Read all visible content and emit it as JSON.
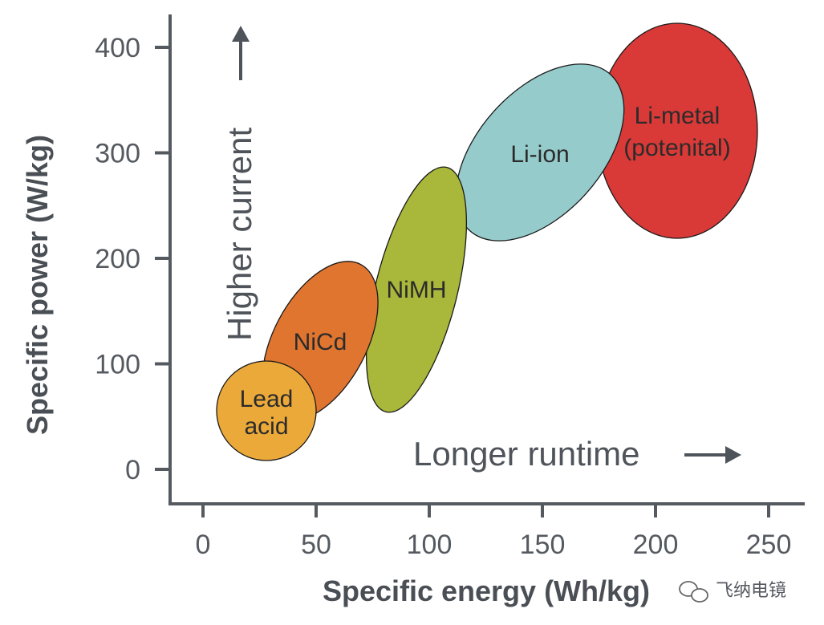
{
  "chart_data": {
    "type": "scatter",
    "title": "",
    "xlabel": "Specific energy (Wh/kg)",
    "ylabel": "Specific power (W/kg)",
    "xlim": [
      -15,
      265
    ],
    "ylim": [
      -32,
      432
    ],
    "x_ticks": [
      "0",
      "50",
      "100",
      "150",
      "200",
      "250"
    ],
    "y_ticks": [
      "0",
      "100",
      "200",
      "300",
      "400"
    ],
    "grid": false,
    "series": [
      {
        "name": "Lead acid",
        "label_lines": [
          "Lead",
          "acid"
        ],
        "color": "#EBA93A",
        "x_range": [
          15,
          50
        ],
        "y_range": [
          10,
          100
        ]
      },
      {
        "name": "NiCd",
        "label_lines": [
          "NiCd"
        ],
        "color": "#E07530",
        "x_range": [
          30,
          75
        ],
        "y_range": [
          50,
          200
        ]
      },
      {
        "name": "NiMH",
        "label_lines": [
          "NiMH"
        ],
        "color": "#A9B73A",
        "x_range": [
          75,
          115
        ],
        "y_range": [
          55,
          290
        ]
      },
      {
        "name": "Li-ion",
        "label_lines": [
          "Li-ion"
        ],
        "color": "#96CBCB",
        "x_range": [
          115,
          180
        ],
        "y_range": [
          210,
          390
        ]
      },
      {
        "name": "Li-metal (potenital)",
        "label_lines": [
          "Li-metal",
          "(potenital)"
        ],
        "color": "#D93A37",
        "x_range": [
          175,
          245
        ],
        "y_range": [
          220,
          425
        ]
      }
    ],
    "annotations": [
      {
        "text": "Higher current",
        "arrow": "up"
      },
      {
        "text": "Longer runtime",
        "arrow": "right"
      }
    ]
  },
  "watermark": "飞纳电镜"
}
